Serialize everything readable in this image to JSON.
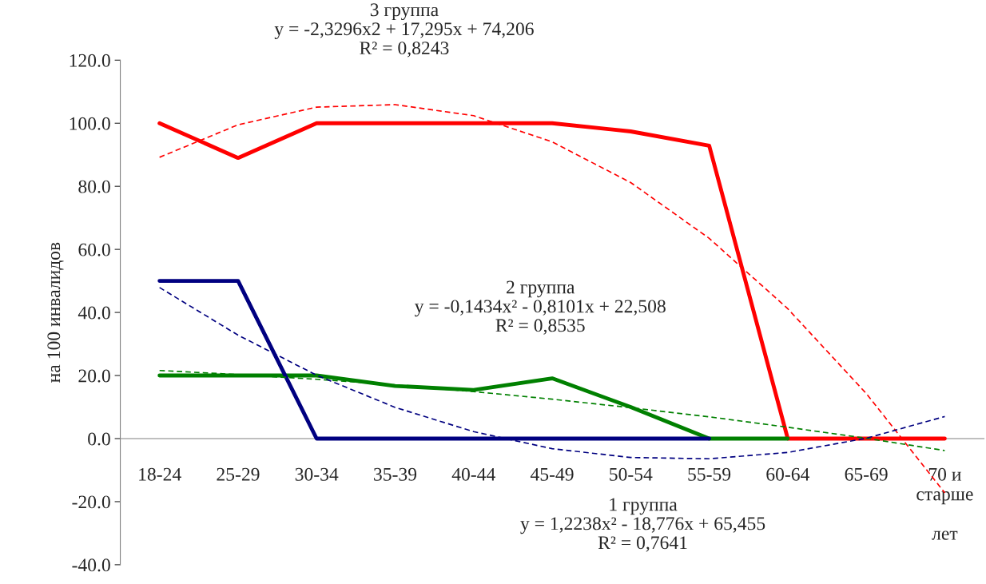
{
  "chart_data": {
    "type": "line",
    "ylabel": "на 100 инвалидов",
    "categories": [
      "18-24",
      "25-29",
      "30-34",
      "35-39",
      "40-44",
      "45-49",
      "50-54",
      "55-59",
      "60-64",
      "65-69",
      "70 и\nстарше\n\nлет"
    ],
    "series": [
      {
        "color": "#ff0000",
        "values": [
          100,
          89,
          100,
          100,
          100,
          100,
          97.4,
          92.9,
          0,
          0,
          0
        ]
      },
      {
        "color": "#008000",
        "values": [
          20,
          20,
          20,
          16.7,
          15.4,
          19.1,
          10,
          0,
          0,
          null,
          null
        ]
      },
      {
        "color": "#000080",
        "values": [
          50,
          50,
          0,
          0,
          0,
          0,
          0,
          0,
          null,
          null,
          null
        ]
      },
      {
        "color": "#ff0000",
        "line_style": "dashed",
        "values": [
          89.2,
          99.5,
          105.1,
          105.9,
          102.4,
          94.1,
          81.2,
          63.5,
          41.2,
          14.3,
          -17.2
        ]
      },
      {
        "color": "#008000",
        "line_style": "dashed",
        "values": [
          21.6,
          20.3,
          18.8,
          17.0,
          14.9,
          12.5,
          9.8,
          6.9,
          3.6,
          0.1,
          -3.8
        ]
      },
      {
        "color": "#000080",
        "line_style": "dashed",
        "values": [
          47.9,
          32.8,
          20.1,
          9.9,
          2.2,
          -3.2,
          -6.0,
          -6.4,
          -4.4,
          0.1,
          7.0
        ]
      }
    ],
    "ylim": [
      -40,
      120
    ],
    "yticks": [
      {
        "value": -40,
        "label": "-40.0"
      },
      {
        "value": -20,
        "label": "-20.0"
      },
      {
        "value": 0,
        "label": "0.0"
      },
      {
        "value": 20,
        "label": "20.0"
      },
      {
        "value": 40,
        "label": "40.0"
      },
      {
        "value": 60,
        "label": "60.0"
      },
      {
        "value": 80,
        "label": "80.0"
      },
      {
        "value": 100,
        "label": "100.0"
      },
      {
        "value": 120,
        "label": "120.0"
      }
    ],
    "grid": false,
    "legend": false,
    "annotations": [
      "3 группа\ny = -2,3296x2 + 17,295x + 74,206\nR² = 0,8243",
      "2 группа\ny = -0,1434x² - 0,8101x + 22,508\nR² = 0,8535",
      "1 группа\ny = 1,2238x² - 18,776x + 65,455\nR² = 0,7641"
    ]
  }
}
